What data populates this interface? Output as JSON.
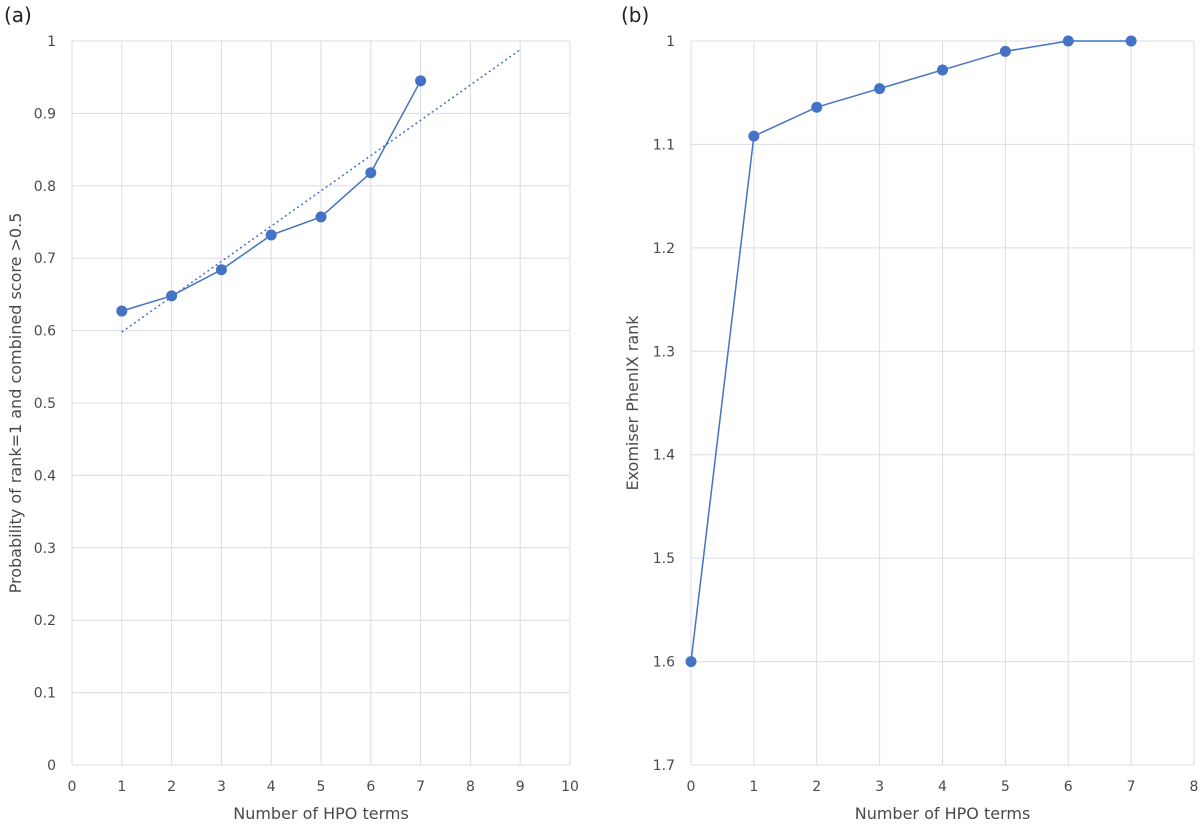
{
  "chart_data": [
    {
      "type": "scatter",
      "panel_label": "(a)",
      "title": "",
      "xlabel": "Number of HPO terms",
      "ylabel": "Probability of rank=1 and combined score >0.5",
      "xlim": [
        0,
        10
      ],
      "ylim": [
        0,
        1
      ],
      "x_ticks": [
        0,
        1,
        2,
        3,
        4,
        5,
        6,
        7,
        8,
        9,
        10
      ],
      "y_ticks": [
        0,
        0.1,
        0.2,
        0.3,
        0.4,
        0.5,
        0.6,
        0.7,
        0.8,
        0.9,
        1
      ],
      "y_inverted": false,
      "grid": true,
      "legend": "none",
      "series_color": "#4472c4",
      "series": [
        {
          "name": "",
          "x": [
            1,
            2,
            3,
            4,
            5,
            6,
            7
          ],
          "y": [
            0.627,
            0.648,
            0.684,
            0.732,
            0.757,
            0.818,
            0.945
          ]
        }
      ],
      "trendline": {
        "style": "dotted",
        "x": [
          1,
          9
        ],
        "y": [
          0.598,
          0.988
        ]
      }
    },
    {
      "type": "line",
      "panel_label": "(b)",
      "title": "",
      "xlabel": "Number of HPO terms",
      "ylabel": "Exomiser PhenIX  rank",
      "xlim": [
        0,
        8
      ],
      "ylim": [
        1,
        1.7
      ],
      "x_ticks": [
        0,
        1,
        2,
        3,
        4,
        5,
        6,
        7,
        8
      ],
      "y_ticks": [
        1,
        1.1,
        1.2,
        1.3,
        1.4,
        1.5,
        1.6,
        1.7
      ],
      "y_inverted": true,
      "grid": true,
      "legend": "none",
      "series_color": "#4472c4",
      "series": [
        {
          "name": "",
          "x": [
            0,
            1,
            2,
            3,
            4,
            5,
            6,
            7
          ],
          "y": [
            1.6,
            1.092,
            1.064,
            1.046,
            1.028,
            1.01,
            1.0,
            1.0
          ]
        }
      ]
    }
  ]
}
